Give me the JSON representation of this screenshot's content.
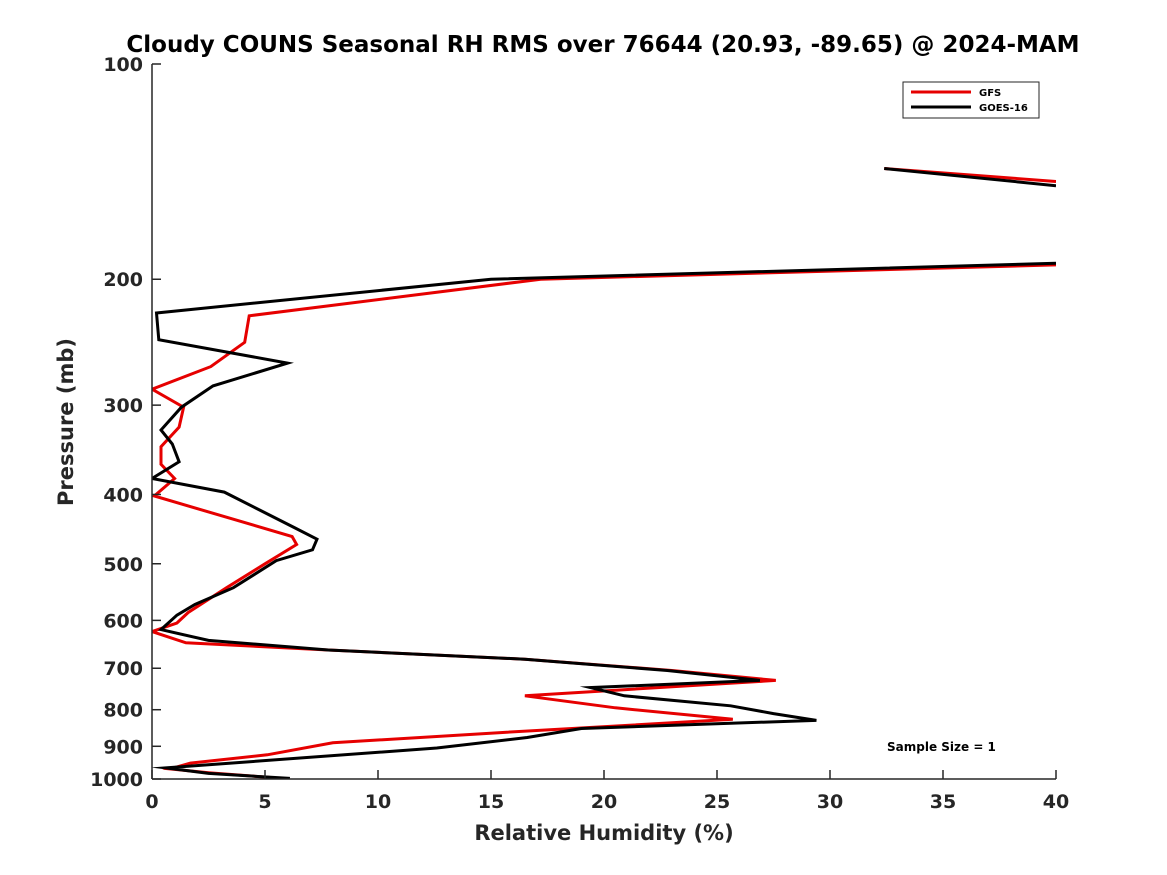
{
  "chart_data": {
    "type": "line",
    "title": "Cloudy COUNS Seasonal RH RMS over 76644 (20.93, -89.65) @ 2024-MAM",
    "xlabel": "Relative Humidity (%)",
    "ylabel": "Pressure (mb)",
    "xlim": [
      0,
      40
    ],
    "ylim": [
      100,
      1000
    ],
    "y_scale": "log",
    "y_reversed": true,
    "xticks": [
      0,
      5,
      10,
      15,
      20,
      25,
      30,
      35,
      40
    ],
    "yticks": [
      100,
      200,
      300,
      400,
      500,
      600,
      700,
      800,
      900,
      1000
    ],
    "grid": false,
    "legend_position": "top-right",
    "annotation": "Sample Size = 1",
    "series": [
      {
        "name": "GFS",
        "color": "#e60000",
        "segments": [
          [
            {
              "x": 32.4,
              "p": 140
            },
            {
              "x": 40.0,
              "p": 146
            }
          ],
          [
            {
              "x": 40.0,
              "p": 191
            },
            {
              "x": 17.2,
              "p": 200
            },
            {
              "x": 4.3,
              "p": 225
            },
            {
              "x": 4.1,
              "p": 245
            },
            {
              "x": 2.6,
              "p": 265
            },
            {
              "x": 0.0,
              "p": 285
            },
            {
              "x": 1.4,
              "p": 302
            },
            {
              "x": 1.2,
              "p": 322
            },
            {
              "x": 0.4,
              "p": 343
            },
            {
              "x": 0.4,
              "p": 363
            },
            {
              "x": 1.0,
              "p": 380
            },
            {
              "x": 0.1,
              "p": 402
            },
            {
              "x": 6.2,
              "p": 458
            },
            {
              "x": 6.4,
              "p": 470
            },
            {
              "x": 5.0,
              "p": 500
            },
            {
              "x": 3.3,
              "p": 540
            },
            {
              "x": 1.6,
              "p": 585
            },
            {
              "x": 1.1,
              "p": 605
            },
            {
              "x": 0.0,
              "p": 622
            },
            {
              "x": 1.5,
              "p": 645
            },
            {
              "x": 7.8,
              "p": 660
            },
            {
              "x": 16.5,
              "p": 680
            },
            {
              "x": 23.0,
              "p": 705
            },
            {
              "x": 27.6,
              "p": 728
            },
            {
              "x": 16.5,
              "p": 765
            },
            {
              "x": 20.5,
              "p": 795
            },
            {
              "x": 25.7,
              "p": 825
            },
            {
              "x": 15.7,
              "p": 860
            },
            {
              "x": 8.0,
              "p": 890
            },
            {
              "x": 5.1,
              "p": 925
            },
            {
              "x": 1.7,
              "p": 950
            },
            {
              "x": 0.8,
              "p": 968
            },
            {
              "x": 2.5,
              "p": 980
            },
            {
              "x": 5.2,
              "p": 995
            }
          ]
        ]
      },
      {
        "name": "GOES-16",
        "color": "#000000",
        "segments": [
          [
            {
              "x": 32.4,
              "p": 140
            },
            {
              "x": 40.0,
              "p": 148
            }
          ],
          [
            {
              "x": 40.0,
              "p": 190
            },
            {
              "x": 15.0,
              "p": 200
            },
            {
              "x": 0.2,
              "p": 223
            },
            {
              "x": 0.3,
              "p": 243
            },
            {
              "x": 6.0,
              "p": 262
            },
            {
              "x": 2.7,
              "p": 282
            },
            {
              "x": 1.3,
              "p": 302
            },
            {
              "x": 0.4,
              "p": 325
            },
            {
              "x": 0.9,
              "p": 340
            },
            {
              "x": 1.2,
              "p": 360
            },
            {
              "x": 0.0,
              "p": 380
            },
            {
              "x": 3.2,
              "p": 397
            },
            {
              "x": 6.3,
              "p": 445
            },
            {
              "x": 7.3,
              "p": 462
            },
            {
              "x": 7.1,
              "p": 478
            },
            {
              "x": 5.5,
              "p": 495
            },
            {
              "x": 3.6,
              "p": 540
            },
            {
              "x": 1.9,
              "p": 570
            },
            {
              "x": 1.1,
              "p": 590
            },
            {
              "x": 0.4,
              "p": 618
            },
            {
              "x": 2.5,
              "p": 640
            },
            {
              "x": 7.8,
              "p": 660
            },
            {
              "x": 16.5,
              "p": 680
            },
            {
              "x": 22.8,
              "p": 705
            },
            {
              "x": 26.9,
              "p": 728
            },
            {
              "x": 19.4,
              "p": 745
            },
            {
              "x": 20.9,
              "p": 765
            },
            {
              "x": 25.6,
              "p": 790
            },
            {
              "x": 27.5,
              "p": 810
            },
            {
              "x": 29.4,
              "p": 828
            },
            {
              "x": 24.5,
              "p": 838
            },
            {
              "x": 19.0,
              "p": 850
            },
            {
              "x": 16.6,
              "p": 875
            },
            {
              "x": 12.6,
              "p": 905
            },
            {
              "x": 0.6,
              "p": 965
            },
            {
              "x": 2.5,
              "p": 982
            },
            {
              "x": 6.1,
              "p": 998
            }
          ]
        ]
      }
    ]
  }
}
